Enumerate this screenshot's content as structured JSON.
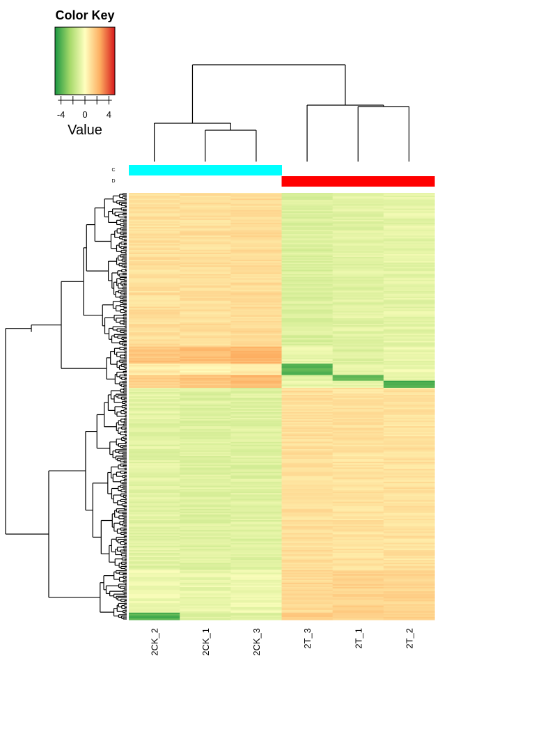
{
  "chart_data": {
    "type": "heatmap",
    "title": "",
    "color_key": {
      "title": "Color Key",
      "xlabel": "Value",
      "range": [
        -5,
        5
      ],
      "ticks": [
        -4,
        0,
        4
      ],
      "tick_labels": [
        "-4",
        "0",
        "4"
      ],
      "colors": [
        "#1a9641",
        "#a6d96a",
        "#ffffbf",
        "#fdae61",
        "#d7191c"
      ]
    },
    "columns": [
      "2CK_2",
      "2CK_1",
      "2CK_3",
      "2T_3",
      "2T_1",
      "2T_2"
    ],
    "column_groups": {
      "labels": [
        "C",
        "D"
      ],
      "assignment": [
        "C",
        "C",
        "C",
        "D",
        "D",
        "D"
      ],
      "colors": {
        "C": "#00ffff",
        "D": "#ff0000"
      }
    },
    "column_dendrogram": "((2CK_2,(2CK_1,2CK_3)),(2T_3,(2T_1,2T_2)))",
    "row_count": 300,
    "row_blocks": [
      {
        "rows": 108,
        "values": [
          1.0,
          1.0,
          1.1,
          -1.0,
          -0.8,
          -0.7
        ]
      },
      {
        "rows": 12,
        "values": [
          1.8,
          2.0,
          2.2,
          -0.6,
          -0.9,
          -0.6
        ]
      },
      {
        "rows": 8,
        "values": [
          0.6,
          0.4,
          0.6,
          -4.0,
          -0.6,
          -0.5
        ]
      },
      {
        "rows": 4,
        "values": [
          1.6,
          1.8,
          2.2,
          -0.8,
          -3.8,
          -0.6
        ]
      },
      {
        "rows": 5,
        "values": [
          1.5,
          1.6,
          2.0,
          -0.6,
          -0.7,
          -4.2
        ]
      },
      {
        "rows": 128,
        "values": [
          -0.8,
          -0.9,
          -0.9,
          1.0,
          0.9,
          0.9
        ]
      },
      {
        "rows": 30,
        "values": [
          -0.4,
          -0.6,
          -0.5,
          1.2,
          1.4,
          1.3
        ]
      },
      {
        "rows": 5,
        "values": [
          -4.0,
          -0.8,
          -1.0,
          1.6,
          1.5,
          1.5
        ]
      }
    ]
  }
}
